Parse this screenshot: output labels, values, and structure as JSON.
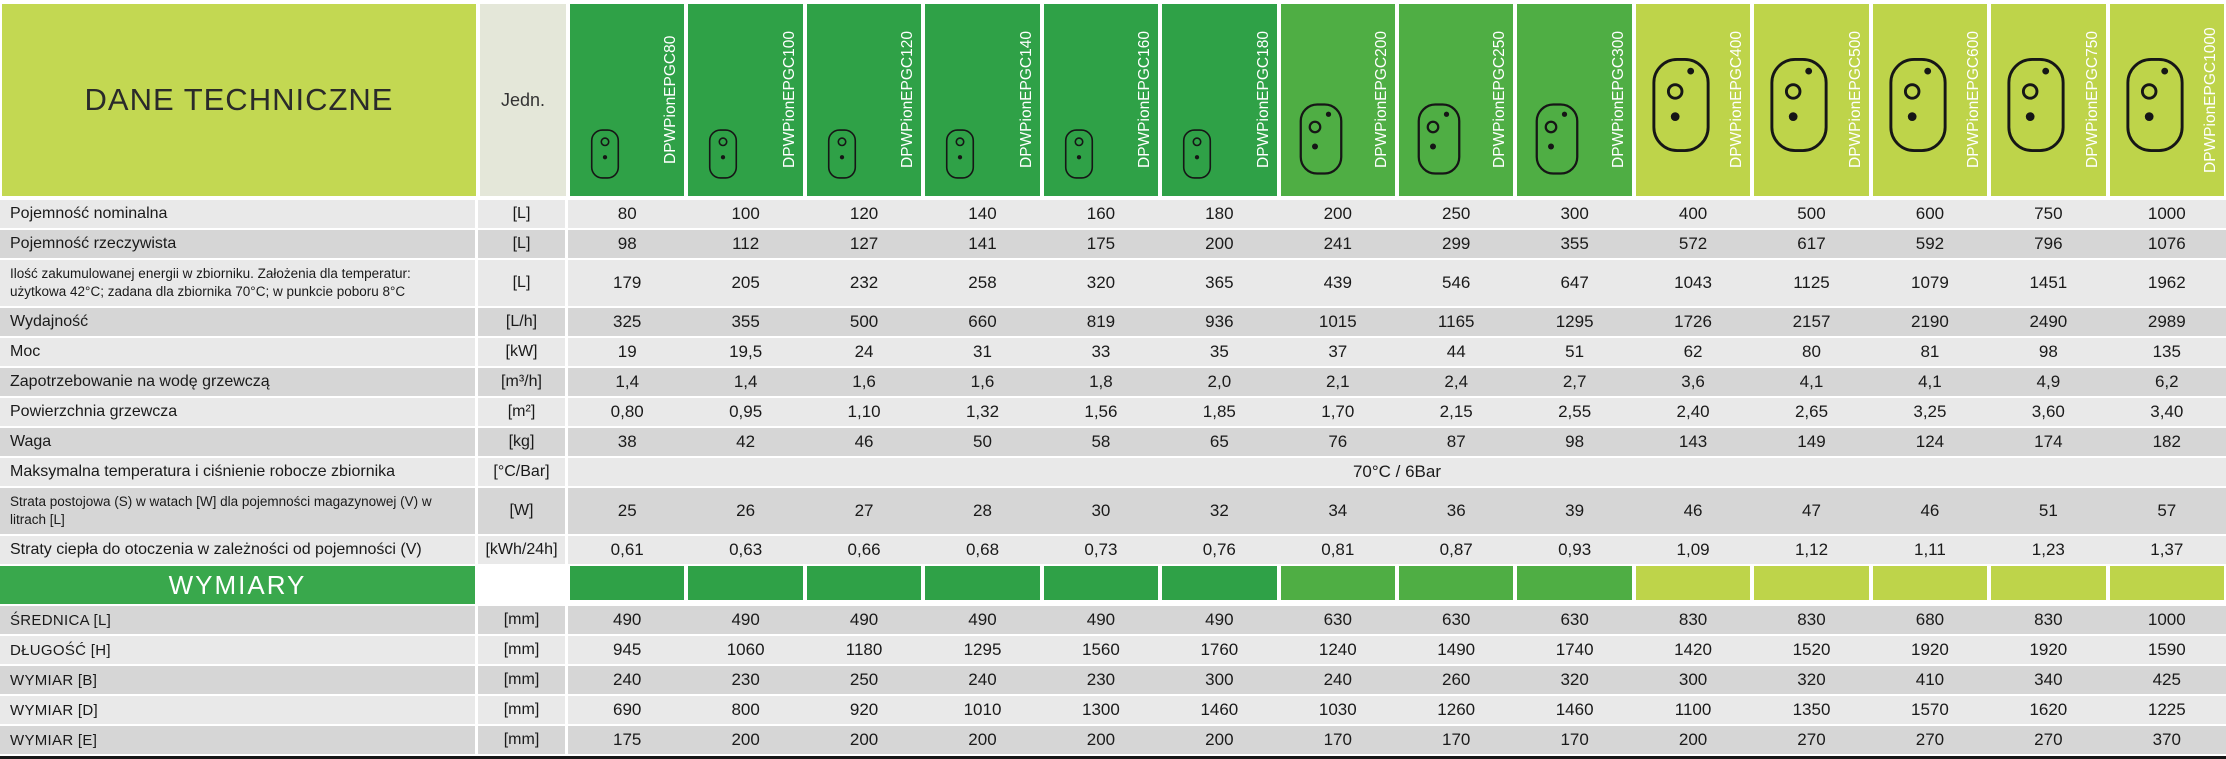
{
  "table": {
    "title": "DANE TECHNICZNE",
    "unit_header": "Jedn.",
    "section_title": "WYMIARY",
    "colors": {
      "group_dark_green": "#2fa147",
      "group_mid_green": "#4fae44",
      "group_yellow_green": "#bed44a",
      "title_bg": "#c3d852",
      "unit_header_bg": "#e4e7d9",
      "section_bg": "#39a84c",
      "stripe_light": "#e9e9e9",
      "stripe_dark": "#d6d6d6"
    },
    "columns": [
      {
        "label": "DPWPionEPGC80",
        "group": 0
      },
      {
        "label": "DPWPionEPGC100",
        "group": 0
      },
      {
        "label": "DPWPionEPGC120",
        "group": 0
      },
      {
        "label": "DPWPionEPGC140",
        "group": 0
      },
      {
        "label": "DPWPionEPGC160",
        "group": 0
      },
      {
        "label": "DPWPionEPGC180",
        "group": 0
      },
      {
        "label": "DPWPionEPGC200",
        "group": 1
      },
      {
        "label": "DPWPionEPGC250",
        "group": 1
      },
      {
        "label": "DPWPionEPGC300",
        "group": 1
      },
      {
        "label": "DPWPionEPGC400",
        "group": 2
      },
      {
        "label": "DPWPionEPGC500",
        "group": 2
      },
      {
        "label": "DPWPionEPGC600",
        "group": 2
      },
      {
        "label": "DPWPionEPGC750",
        "group": 2
      },
      {
        "label": "DPWPionEPGC1000",
        "group": 2
      }
    ],
    "rows": [
      {
        "label": "Pojemność nominalna",
        "unit": "[L]",
        "values": [
          "80",
          "100",
          "120",
          "140",
          "160",
          "180",
          "200",
          "250",
          "300",
          "400",
          "500",
          "600",
          "750",
          "1000"
        ]
      },
      {
        "label": "Pojemność rzeczywista",
        "unit": "[L]",
        "values": [
          "98",
          "112",
          "127",
          "141",
          "175",
          "200",
          "241",
          "299",
          "355",
          "572",
          "617",
          "592",
          "796",
          "1076"
        ]
      },
      {
        "label": "Ilość zakumulowanej energii w zbiorniku. Założenia dla temperatur: użytkowa 42°C; zadana dla zbiornika 70°C; w punkcie poboru 8°C",
        "unit": "[L]",
        "tall": true,
        "values": [
          "179",
          "205",
          "232",
          "258",
          "320",
          "365",
          "439",
          "546",
          "647",
          "1043",
          "1125",
          "1079",
          "1451",
          "1962"
        ]
      },
      {
        "label": "Wydajność",
        "unit": "[L/h]",
        "values": [
          "325",
          "355",
          "500",
          "660",
          "819",
          "936",
          "1015",
          "1165",
          "1295",
          "1726",
          "2157",
          "2190",
          "2490",
          "2989"
        ]
      },
      {
        "label": "Moc",
        "unit": "[kW]",
        "values": [
          "19",
          "19,5",
          "24",
          "31",
          "33",
          "35",
          "37",
          "44",
          "51",
          "62",
          "80",
          "81",
          "98",
          "135"
        ]
      },
      {
        "label": "Zapotrzebowanie na wodę grzewczą",
        "unit": "[m³/h]",
        "values": [
          "1,4",
          "1,4",
          "1,6",
          "1,6",
          "1,8",
          "2,0",
          "2,1",
          "2,4",
          "2,7",
          "3,6",
          "4,1",
          "4,1",
          "4,9",
          "6,2"
        ]
      },
      {
        "label": "Powierzchnia grzewcza",
        "unit": "[m²]",
        "values": [
          "0,80",
          "0,95",
          "1,10",
          "1,32",
          "1,56",
          "1,85",
          "1,70",
          "2,15",
          "2,55",
          "2,40",
          "2,65",
          "3,25",
          "3,60",
          "3,40"
        ]
      },
      {
        "label": "Waga",
        "unit": "[kg]",
        "values": [
          "38",
          "42",
          "46",
          "50",
          "58",
          "65",
          "76",
          "87",
          "98",
          "143",
          "149",
          "124",
          "174",
          "182"
        ]
      },
      {
        "label": "Maksymalna temperatura i ciśnienie robocze zbiornika",
        "unit": "[°C/Bar]",
        "span_value": "70°C / 6Bar"
      },
      {
        "label": "Strata postojowa (S) w watach [W] dla pojemności magazynowej (V) w litrach [L]",
        "unit": "[W]",
        "tall": true,
        "values": [
          "25",
          "26",
          "27",
          "28",
          "30",
          "32",
          "34",
          "36",
          "39",
          "46",
          "47",
          "46",
          "51",
          "57"
        ]
      },
      {
        "label": "Straty ciepła do otoczenia w zależności od pojemności (V)",
        "unit": "[kWh/24h]",
        "values": [
          "0,61",
          "0,63",
          "0,66",
          "0,68",
          "0,73",
          "0,76",
          "0,81",
          "0,87",
          "0,93",
          "1,09",
          "1,12",
          "1,11",
          "1,23",
          "1,37"
        ]
      }
    ],
    "dim_rows": [
      {
        "label": "ŚREDNICA [L]",
        "unit": "[mm]",
        "values": [
          "490",
          "490",
          "490",
          "490",
          "490",
          "490",
          "630",
          "630",
          "630",
          "830",
          "830",
          "680",
          "830",
          "1000"
        ]
      },
      {
        "label": "DŁUGOŚĆ [H]",
        "unit": "[mm]",
        "values": [
          "945",
          "1060",
          "1180",
          "1295",
          "1560",
          "1760",
          "1240",
          "1490",
          "1740",
          "1420",
          "1520",
          "1920",
          "1920",
          "1590"
        ]
      },
      {
        "label": "WYMIAR [B]",
        "unit": "[mm]",
        "values": [
          "240",
          "230",
          "250",
          "240",
          "230",
          "300",
          "240",
          "260",
          "320",
          "300",
          "320",
          "410",
          "340",
          "425"
        ]
      },
      {
        "label": "WYMIAR [D]",
        "unit": "[mm]",
        "values": [
          "690",
          "800",
          "920",
          "1010",
          "1300",
          "1460",
          "1030",
          "1260",
          "1460",
          "1100",
          "1350",
          "1570",
          "1620",
          "1225"
        ]
      },
      {
        "label": "WYMIAR [E]",
        "unit": "[mm]",
        "values": [
          "175",
          "200",
          "200",
          "200",
          "200",
          "200",
          "170",
          "170",
          "170",
          "200",
          "270",
          "270",
          "270",
          "370"
        ]
      }
    ]
  }
}
